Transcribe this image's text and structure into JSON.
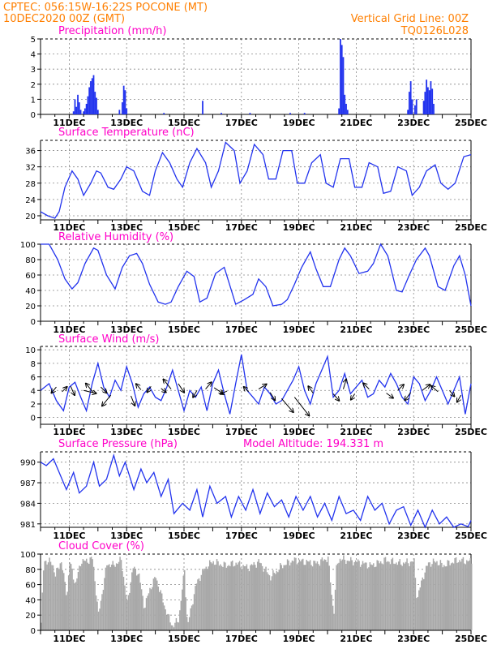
{
  "header": {
    "line1_left": "CPTEC:   056:15W-16:22S   POCONE (MT)",
    "line2_left": "10DEC2020 00Z (GMT)",
    "line1_right": "Vertical Grid Line: 00Z",
    "line2_right": "TQ0126L028"
  },
  "colors": {
    "header": "#ff7f00",
    "title": "#ff00c8",
    "series": "#2233ee",
    "cloud": "#a8a8a8"
  },
  "x_axis": {
    "day_labels": [
      "11DEC",
      "13DEC",
      "15DEC",
      "17DEC",
      "19DEC",
      "21DEC",
      "23DEC",
      "25DEC"
    ],
    "span_days": 15
  },
  "panels": {
    "precip_title": "Precipitation (mm/h)",
    "temp_title": "Surface Temperature (nC)",
    "rh_title": "Relative Humidity (%)",
    "wind_title": "Surface Wind (m/s)",
    "pres_title": "Surface Pressure (hPa)",
    "model_alt": "Model Altitude: 194.331 m",
    "cloud_title": "Cloud Cover (%)"
  },
  "chart_data": [
    {
      "id": "precip",
      "type": "bar",
      "title": "Precipitation (mm/h)",
      "ylabel": "mm/h",
      "ylim": [
        0,
        5
      ],
      "yticks": [
        0,
        1,
        2,
        3,
        4,
        5
      ],
      "bars": [
        [
          1.15,
          0.2
        ],
        [
          1.2,
          1.0
        ],
        [
          1.25,
          0.5
        ],
        [
          1.3,
          1.3
        ],
        [
          1.35,
          0.8
        ],
        [
          1.4,
          0.3
        ],
        [
          1.5,
          0.2
        ],
        [
          1.55,
          0.4
        ],
        [
          1.6,
          0.7
        ],
        [
          1.65,
          1.2
        ],
        [
          1.7,
          1.8
        ],
        [
          1.75,
          2.2
        ],
        [
          1.8,
          2.4
        ],
        [
          1.85,
          2.6
        ],
        [
          1.9,
          1.5
        ],
        [
          1.95,
          1.1
        ],
        [
          2.0,
          0.3
        ],
        [
          2.75,
          0.3
        ],
        [
          2.85,
          0.8
        ],
        [
          2.9,
          1.9
        ],
        [
          2.95,
          1.6
        ],
        [
          3.0,
          0.4
        ],
        [
          4.3,
          0.1
        ],
        [
          5.65,
          0.9
        ],
        [
          6.3,
          0.1
        ],
        [
          7.3,
          0.1
        ],
        [
          8.7,
          0.1
        ],
        [
          9.2,
          0.1
        ],
        [
          10.4,
          0.4
        ],
        [
          10.45,
          5.0
        ],
        [
          10.5,
          4.6
        ],
        [
          10.55,
          3.8
        ],
        [
          10.6,
          1.3
        ],
        [
          10.65,
          0.7
        ],
        [
          10.7,
          0.3
        ],
        [
          12.8,
          0.3
        ],
        [
          12.85,
          1.5
        ],
        [
          12.9,
          2.2
        ],
        [
          12.95,
          1.0
        ],
        [
          13.05,
          0.6
        ],
        [
          13.1,
          1.0
        ],
        [
          13.35,
          0.9
        ],
        [
          13.4,
          1.5
        ],
        [
          13.45,
          2.3
        ],
        [
          13.5,
          1.8
        ],
        [
          13.55,
          1.6
        ],
        [
          13.6,
          2.2
        ],
        [
          13.65,
          1.7
        ],
        [
          13.7,
          0.7
        ]
      ]
    },
    {
      "id": "temp",
      "type": "line",
      "title": "Surface Temperature (nC)",
      "ylabel": "nC",
      "ylim": [
        19,
        38.5
      ],
      "yticks": [
        20,
        24,
        28,
        32,
        36
      ],
      "x": [
        0,
        0.25,
        0.5,
        0.65,
        0.85,
        1.1,
        1.3,
        1.5,
        1.75,
        1.95,
        2.1,
        2.35,
        2.55,
        2.8,
        3.0,
        3.25,
        3.55,
        3.8,
        4.0,
        4.25,
        4.5,
        4.75,
        4.95,
        5.2,
        5.45,
        5.75,
        5.95,
        6.2,
        6.45,
        6.75,
        6.95,
        7.2,
        7.45,
        7.75,
        7.95,
        8.2,
        8.45,
        8.75,
        8.95,
        9.2,
        9.45,
        9.75,
        9.95,
        10.2,
        10.45,
        10.75,
        10.95,
        11.2,
        11.45,
        11.75,
        11.95,
        12.2,
        12.45,
        12.75,
        12.95,
        13.2,
        13.45,
        13.75,
        13.95,
        14.2,
        14.45,
        14.75,
        15.0
      ],
      "y": [
        21,
        20,
        19.4,
        21,
        27,
        31,
        29,
        25,
        28,
        31,
        30.5,
        27,
        26.5,
        29,
        32,
        31,
        26,
        25,
        31,
        35.5,
        33,
        29,
        27,
        33,
        36.5,
        33,
        27,
        31,
        38,
        36,
        28,
        31,
        37.5,
        35,
        29,
        29,
        36,
        36,
        28,
        28,
        33,
        35,
        28,
        27,
        34,
        34,
        27,
        27,
        33,
        32,
        25.5,
        26,
        32,
        31,
        25,
        27,
        31,
        32.5,
        28,
        26.5,
        28,
        34.5,
        35
      ]
    },
    {
      "id": "rh",
      "type": "line",
      "title": "Relative Humidity (%)",
      "ylabel": "%",
      "ylim": [
        0,
        100
      ],
      "yticks": [
        0,
        20,
        40,
        60,
        80,
        100
      ],
      "x": [
        0,
        0.3,
        0.6,
        0.85,
        1.1,
        1.3,
        1.55,
        1.85,
        2.0,
        2.3,
        2.6,
        2.85,
        3.1,
        3.35,
        3.55,
        3.8,
        4.1,
        4.35,
        4.55,
        4.8,
        5.1,
        5.35,
        5.55,
        5.8,
        6.1,
        6.4,
        6.55,
        6.8,
        7.1,
        7.4,
        7.6,
        7.85,
        8.1,
        8.4,
        8.6,
        8.85,
        9.1,
        9.4,
        9.6,
        9.85,
        10.1,
        10.4,
        10.6,
        10.8,
        11.1,
        11.4,
        11.6,
        11.85,
        12.1,
        12.4,
        12.6,
        12.85,
        13.1,
        13.4,
        13.55,
        13.85,
        14.1,
        14.4,
        14.6,
        14.8,
        15.0
      ],
      "y": [
        100,
        100,
        80,
        55,
        42,
        50,
        75,
        95,
        92,
        60,
        42,
        70,
        85,
        88,
        75,
        48,
        25,
        22,
        25,
        45,
        65,
        58,
        25,
        30,
        62,
        70,
        52,
        22,
        28,
        35,
        55,
        45,
        20,
        22,
        28,
        48,
        70,
        90,
        68,
        45,
        45,
        80,
        95,
        85,
        62,
        65,
        75,
        100,
        85,
        40,
        38,
        60,
        80,
        95,
        85,
        45,
        40,
        72,
        85,
        60,
        20
      ]
    },
    {
      "id": "wind",
      "type": "line",
      "title": "Surface Wind (m/s)",
      "ylabel": "m/s",
      "ylim": [
        -1,
        10.5
      ],
      "yticks": [
        0,
        2,
        4,
        6,
        8,
        10
      ],
      "x": [
        0,
        0.3,
        0.55,
        0.8,
        1.0,
        1.2,
        1.4,
        1.6,
        1.8,
        2.0,
        2.2,
        2.4,
        2.6,
        2.8,
        3.0,
        3.2,
        3.4,
        3.6,
        3.8,
        4.0,
        4.2,
        4.4,
        4.6,
        4.8,
        5.0,
        5.2,
        5.4,
        5.6,
        5.8,
        6.0,
        6.2,
        6.4,
        6.6,
        6.8,
        7.0,
        7.2,
        7.4,
        7.6,
        7.8,
        8.0,
        8.2,
        8.4,
        8.6,
        8.8,
        9.0,
        9.2,
        9.4,
        9.6,
        9.8,
        10.0,
        10.2,
        10.4,
        10.6,
        10.8,
        11.0,
        11.2,
        11.4,
        11.6,
        11.8,
        12.0,
        12.2,
        12.4,
        12.6,
        12.8,
        13.0,
        13.2,
        13.4,
        13.6,
        13.8,
        14.0,
        14.2,
        14.4,
        14.6,
        14.8,
        15.0
      ],
      "y": [
        4,
        5,
        2.5,
        1,
        4.5,
        5.2,
        3,
        1,
        5,
        8,
        4.5,
        3,
        5.5,
        4,
        7.5,
        5,
        1.5,
        3.5,
        4.5,
        3,
        2.5,
        4.5,
        7,
        4,
        1,
        4,
        3,
        4.5,
        1,
        5,
        7,
        3.5,
        0.5,
        5,
        9.3,
        4,
        3,
        2,
        4.5,
        3.5,
        2,
        2.5,
        4,
        5.5,
        7.5,
        4,
        2,
        5,
        7,
        9,
        3,
        4,
        6.5,
        3.5,
        4.5,
        5.5,
        3,
        3.5,
        5.5,
        4.5,
        6.5,
        5,
        3,
        2,
        6,
        5,
        2.5,
        4,
        6,
        4,
        2,
        4,
        6,
        0.5,
        5
      ]
    }
  ],
  "chart_data_pressure": {
    "id": "pres",
    "type": "line",
    "title": "Surface Pressure (hPa)",
    "ylabel": "hPa",
    "ylim": [
      980.5,
      991.5
    ],
    "yticks": [
      981,
      984,
      987,
      990
    ],
    "x": [
      0,
      0.2,
      0.45,
      0.7,
      0.9,
      1.15,
      1.35,
      1.6,
      1.85,
      2.05,
      2.3,
      2.55,
      2.75,
      2.95,
      3.25,
      3.5,
      3.7,
      3.95,
      4.2,
      4.45,
      4.65,
      4.95,
      5.2,
      5.45,
      5.65,
      5.9,
      6.15,
      6.45,
      6.65,
      6.9,
      7.15,
      7.4,
      7.65,
      7.9,
      8.15,
      8.4,
      8.65,
      8.9,
      9.15,
      9.4,
      9.65,
      9.9,
      10.15,
      10.4,
      10.65,
      10.9,
      11.15,
      11.4,
      11.65,
      11.9,
      12.15,
      12.4,
      12.65,
      12.9,
      13.15,
      13.4,
      13.65,
      13.9,
      14.15,
      14.4,
      14.65,
      14.9,
      15.0
    ],
    "y": [
      990,
      989.5,
      990.5,
      988,
      986,
      988.5,
      985.5,
      986.5,
      990,
      986.5,
      987.5,
      991,
      988,
      990,
      986,
      989,
      987,
      988.5,
      985,
      987.5,
      982.5,
      984,
      983,
      986,
      982,
      986.5,
      984,
      985,
      982,
      985,
      983,
      986,
      982.5,
      985.5,
      983.5,
      984.5,
      982,
      985,
      983,
      985,
      982,
      984,
      981.5,
      985,
      982.5,
      983,
      981.5,
      985,
      983,
      984,
      981,
      983,
      983.5,
      980.8,
      983,
      980.5,
      983,
      981,
      982,
      980.5,
      981,
      980.6,
      981.5
    ]
  },
  "wind_arrows_note": "",
  "wind_arrows": [
    [
      0.55,
      4.5,
      -0.5,
      0.6
    ],
    [
      0.75,
      3.8,
      0.5,
      -0.5
    ],
    [
      1.05,
      4.6,
      0.4,
      0.9
    ],
    [
      1.5,
      4.0,
      1.3,
      0.3
    ],
    [
      1.85,
      3.6,
      -0.8,
      -1.0
    ],
    [
      2.1,
      4.5,
      0.6,
      0.6
    ],
    [
      2.45,
      3.3,
      -0.9,
      1.1
    ],
    [
      3.15,
      3.2,
      0.4,
      1.0
    ],
    [
      3.5,
      4.1,
      -0.5,
      -0.6
    ],
    [
      3.85,
      4.6,
      -0.4,
      0.6
    ],
    [
      4.2,
      4.3,
      0.5,
      0.4
    ],
    [
      4.55,
      4.2,
      -0.8,
      -1.0
    ],
    [
      4.8,
      5.0,
      0.6,
      0.9
    ],
    [
      5.45,
      4.0,
      -0.4,
      0.7
    ],
    [
      5.75,
      4.2,
      0.6,
      -0.7
    ],
    [
      6.05,
      4.4,
      0.9,
      0.6
    ],
    [
      6.5,
      3.9,
      -0.7,
      0.3
    ],
    [
      7.25,
      3.8,
      -0.5,
      -0.5
    ],
    [
      7.6,
      4.2,
      0.8,
      -0.5
    ],
    [
      8.0,
      3.7,
      0.5,
      0.8
    ],
    [
      8.4,
      2.8,
      1.2,
      1.4
    ],
    [
      8.85,
      3.0,
      1.5,
      1.9
    ],
    [
      9.5,
      3.6,
      -0.5,
      -0.7
    ],
    [
      10.2,
      3.5,
      0.6,
      0.7
    ],
    [
      10.55,
      4.2,
      0.3,
      -1.0
    ],
    [
      10.95,
      3.5,
      -0.4,
      0.6
    ],
    [
      11.45,
      4.2,
      -0.6,
      -0.6
    ],
    [
      12.05,
      3.6,
      0.7,
      0.5
    ],
    [
      12.45,
      4.0,
      0.6,
      -0.6
    ],
    [
      12.9,
      3.7,
      -0.6,
      0.8
    ],
    [
      13.3,
      4.0,
      0.8,
      -0.6
    ],
    [
      13.85,
      3.8,
      -0.7,
      -0.6
    ],
    [
      14.25,
      4.0,
      0.5,
      0.6
    ],
    [
      14.65,
      3.3,
      -0.4,
      0.7
    ]
  ],
  "cloud_data": {
    "type": "bar",
    "title": "Cloud Cover (%)",
    "ylim": [
      0,
      100
    ],
    "yticks": [
      0,
      20,
      40,
      60,
      80,
      100
    ],
    "profile_x": [
      0,
      0.1,
      0.4,
      0.5,
      0.7,
      0.9,
      1.0,
      1.2,
      1.4,
      1.5,
      1.8,
      2.0,
      2.3,
      2.5,
      2.8,
      3.0,
      3.2,
      3.4,
      3.6,
      3.8,
      4.0,
      4.2,
      4.4,
      4.6,
      4.8,
      5.0,
      5.1,
      5.4,
      5.6,
      5.8,
      6.0,
      6.4,
      6.8,
      7.2,
      7.6,
      8.0,
      8.4,
      8.8,
      9.2,
      9.6,
      10.0,
      10.2,
      10.3,
      10.4,
      10.6,
      11.0,
      11.5,
      12.0,
      12.5,
      13.0,
      13.1,
      13.3,
      13.5,
      13.8,
      14.0,
      14.5,
      15.0
    ],
    "profile_y": [
      10,
      92,
      88,
      72,
      92,
      45,
      90,
      60,
      92,
      90,
      94,
      20,
      88,
      85,
      92,
      35,
      82,
      75,
      30,
      55,
      70,
      45,
      20,
      5,
      15,
      80,
      5,
      60,
      75,
      85,
      90,
      85,
      88,
      82,
      90,
      70,
      85,
      92,
      90,
      88,
      95,
      20,
      85,
      94,
      92,
      90,
      85,
      92,
      88,
      90,
      40,
      70,
      88,
      90,
      85,
      92,
      90
    ]
  }
}
